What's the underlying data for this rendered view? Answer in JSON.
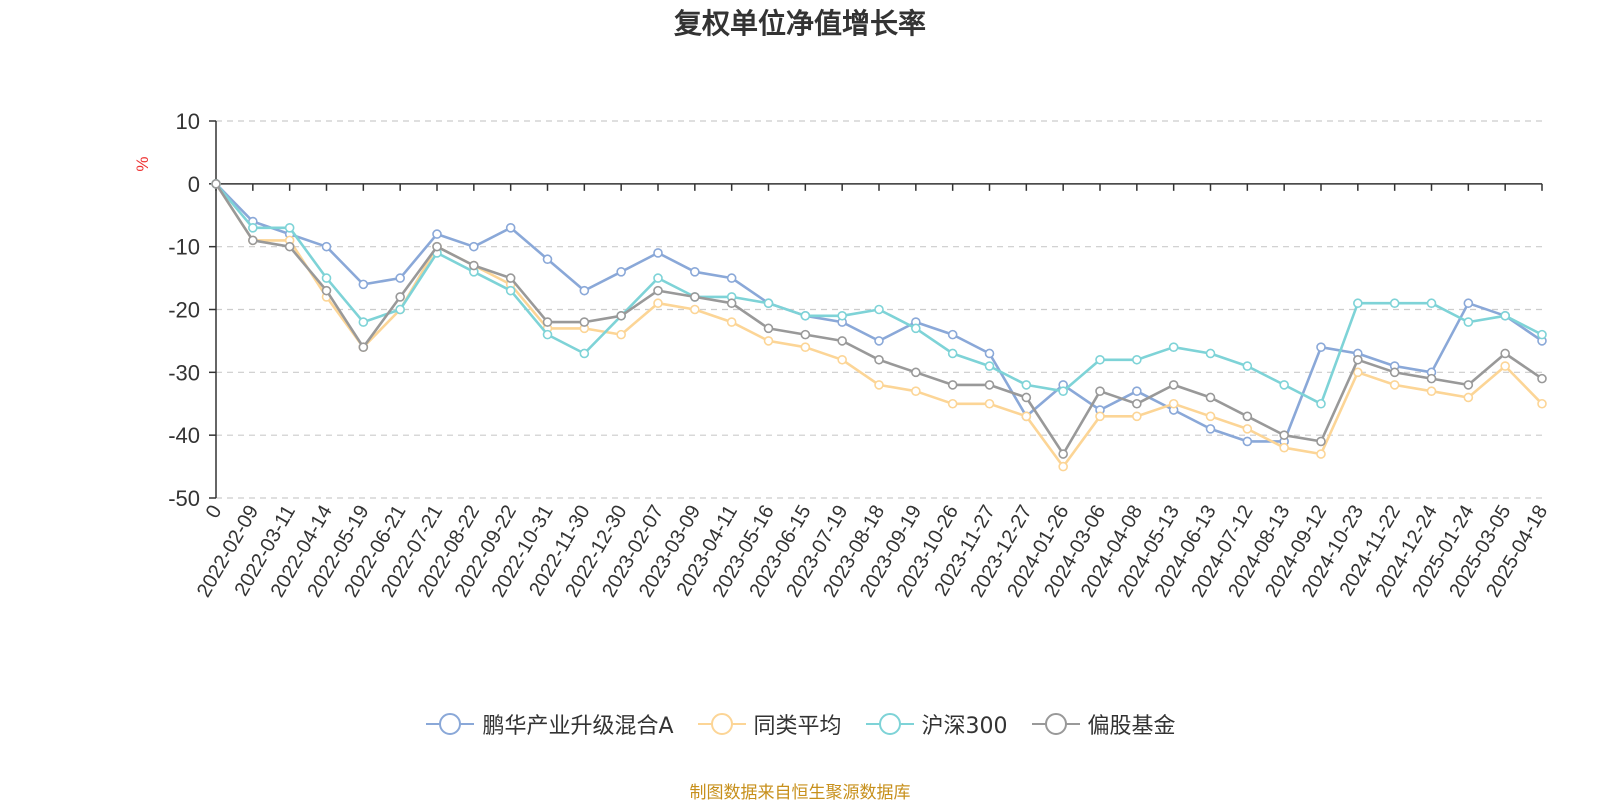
{
  "source_note": "制图数据来自恒生聚源数据库",
  "chart_data": {
    "type": "line",
    "title": "复权单位净值增长率",
    "ylabel": "%",
    "ylim": [
      -50,
      10
    ],
    "yticks": [
      10,
      0,
      -10,
      -20,
      -30,
      -40,
      -50
    ],
    "x_tick_labels": [
      "0",
      "2022-02-09",
      "2022-03-11",
      "2022-04-14",
      "2022-05-19",
      "2022-06-21",
      "2022-07-21",
      "2022-08-22",
      "2022-09-22",
      "2022-10-31",
      "2022-11-30",
      "2022-12-30",
      "2023-02-07",
      "2023-03-09",
      "2023-04-11",
      "2023-05-16",
      "2023-06-15",
      "2023-07-19",
      "2023-08-18",
      "2023-09-19",
      "2023-10-26",
      "2023-11-27",
      "2023-12-27",
      "2024-01-26",
      "2024-03-06",
      "2024-04-08",
      "2024-05-13",
      "2024-06-13",
      "2024-07-12",
      "2024-08-13",
      "2024-09-12",
      "2024-10-23",
      "2024-11-22",
      "2024-12-24",
      "2025-01-24",
      "2025-03-05",
      "2025-04-18"
    ],
    "grid": "horizontal dashed",
    "legend_position": "bottom",
    "series": [
      {
        "name": "鹏华产业升级混合A",
        "color": "#8aa8d8",
        "values": [
          0,
          -6,
          -8,
          -10,
          -16,
          -15,
          -8,
          -10,
          -7,
          -12,
          -17,
          -14,
          -11,
          -14,
          -15,
          -19,
          -21,
          -22,
          -25,
          -22,
          -24,
          -27,
          -37,
          -32,
          -36,
          -33,
          -36,
          -39,
          -41,
          -41,
          -26,
          -27,
          -29,
          -30,
          -19,
          -21,
          -25
        ]
      },
      {
        "name": "同类平均",
        "color": "#fcd596",
        "values": [
          0,
          -9,
          -9,
          -18,
          -26,
          -20,
          -10,
          -13,
          -16,
          -23,
          -23,
          -24,
          -19,
          -20,
          -22,
          -25,
          -26,
          -28,
          -32,
          -33,
          -35,
          -35,
          -37,
          -45,
          -37,
          -37,
          -35,
          -37,
          -39,
          -42,
          -43,
          -30,
          -32,
          -33,
          -34,
          -29,
          -35
        ]
      },
      {
        "name": "沪深300",
        "color": "#7ed3d7",
        "values": [
          0,
          -7,
          -7,
          -15,
          -22,
          -20,
          -11,
          -14,
          -17,
          -24,
          -27,
          -21,
          -15,
          -18,
          -18,
          -19,
          -21,
          -21,
          -20,
          -23,
          -27,
          -29,
          -32,
          -33,
          -28,
          -28,
          -26,
          -27,
          -29,
          -32,
          -35,
          -19,
          -19,
          -19,
          -22,
          -21,
          -24
        ]
      },
      {
        "name": "偏股基金",
        "color": "#999999",
        "values": [
          0,
          -9,
          -10,
          -17,
          -26,
          -18,
          -10,
          -13,
          -15,
          -22,
          -22,
          -21,
          -17,
          -18,
          -19,
          -23,
          -24,
          -25,
          -28,
          -30,
          -32,
          -32,
          -34,
          -43,
          -33,
          -35,
          -32,
          -34,
          -37,
          -40,
          -41,
          -28,
          -30,
          -31,
          -32,
          -27,
          -31
        ]
      }
    ]
  }
}
